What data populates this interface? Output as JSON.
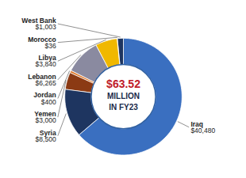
{
  "chart_data": {
    "type": "donut",
    "categories": [
      "Iraq",
      "Syria",
      "Yemen",
      "Jordan",
      "Lebanon",
      "Libya",
      "Morocco",
      "West Bank"
    ],
    "values": [
      40480,
      8500,
      3000,
      400,
      6265,
      3840,
      36,
      1003
    ],
    "value_labels": [
      "$40,480",
      "$8,500",
      "$3,000",
      "$400",
      "$6,265",
      "$3,840",
      "$36",
      "$1,003"
    ],
    "colors": [
      "#3a6fc0",
      "#1e3560",
      "#8b3a14",
      "#e07828",
      "#8a8aa0",
      "#f0b800",
      "#5aaa40",
      "#1e3560"
    ],
    "annotations": [
      "$63.52",
      "MILLION",
      "IN FY23"
    ],
    "data_labels": true
  }
}
